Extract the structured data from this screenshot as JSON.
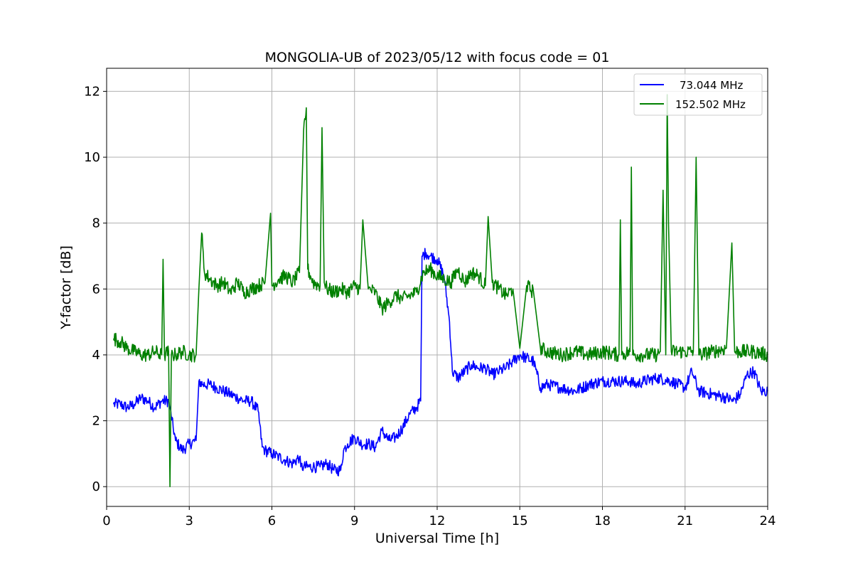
{
  "chart_data": {
    "type": "line",
    "title": "MONGOLIA-UB of 2023/05/12 with focus code = 01",
    "xlabel": "Universal Time [h]",
    "ylabel": "Y-factor [dB]",
    "xlim": [
      0,
      24
    ],
    "ylim": [
      -0.6,
      12.7
    ],
    "xticks": [
      0,
      3,
      6,
      9,
      12,
      15,
      18,
      21,
      24
    ],
    "yticks": [
      0,
      2,
      4,
      6,
      8,
      10,
      12
    ],
    "xtick_labels": [
      "0",
      "3",
      "6",
      "9",
      "12",
      "15",
      "18",
      "21",
      "24"
    ],
    "ytick_labels": [
      "0",
      "2",
      "4",
      "6",
      "8",
      "10",
      "12"
    ],
    "grid": true,
    "legend_position": "top-right",
    "series": [
      {
        "name": "73.044 MHz",
        "color": "#0000ff",
        "x": [
          0.25,
          0.5,
          0.75,
          1.0,
          1.25,
          1.5,
          1.75,
          2.0,
          2.25,
          2.5,
          2.75,
          3.0,
          3.25,
          3.35,
          3.5,
          3.75,
          4.0,
          4.25,
          4.5,
          4.75,
          5.0,
          5.25,
          5.5,
          5.65,
          5.75,
          6.0,
          6.25,
          6.5,
          6.75,
          7.0,
          7.05,
          7.15,
          7.5,
          7.75,
          8.0,
          8.25,
          8.5,
          8.6,
          8.75,
          9.0,
          9.25,
          9.5,
          9.75,
          10.0,
          10.25,
          10.5,
          10.75,
          11.0,
          11.25,
          11.4,
          11.45,
          11.6,
          11.75,
          12.0,
          12.25,
          12.45,
          12.55,
          12.75,
          13.0,
          13.25,
          13.5,
          13.75,
          14.0,
          14.25,
          14.5,
          14.75,
          15.0,
          15.25,
          15.5,
          15.75,
          16.0,
          16.5,
          17.0,
          17.5,
          18.0,
          18.5,
          19.0,
          19.2,
          19.5,
          20.0,
          20.5,
          21.0,
          21.25,
          21.5,
          22.0,
          22.5,
          22.75,
          23.0,
          23.25,
          23.5,
          23.75,
          24.0
        ],
        "y": [
          2.5,
          2.5,
          2.4,
          2.5,
          2.7,
          2.6,
          2.4,
          2.6,
          2.6,
          1.4,
          1.1,
          1.3,
          1.4,
          3.2,
          3.1,
          3.1,
          3.0,
          2.9,
          2.8,
          2.7,
          2.6,
          2.6,
          2.3,
          1.2,
          1.1,
          1.0,
          0.9,
          0.8,
          0.7,
          0.9,
          0.6,
          0.6,
          0.6,
          0.6,
          0.7,
          0.5,
          0.5,
          1.1,
          1.3,
          1.5,
          1.3,
          1.3,
          1.2,
          1.7,
          1.4,
          1.5,
          1.8,
          2.2,
          2.4,
          2.6,
          7.0,
          7.1,
          7.0,
          6.9,
          6.4,
          5.0,
          3.5,
          3.3,
          3.5,
          3.7,
          3.6,
          3.6,
          3.4,
          3.5,
          3.6,
          3.8,
          4.0,
          3.9,
          3.8,
          3.0,
          3.1,
          3.0,
          2.9,
          3.1,
          3.2,
          3.2,
          3.2,
          3.1,
          3.2,
          3.3,
          3.2,
          3.0,
          3.5,
          2.9,
          2.8,
          2.7,
          2.6,
          2.8,
          3.4,
          3.5,
          2.9,
          2.9
        ]
      },
      {
        "name": "152.502 MHz",
        "color": "#008000",
        "x": [
          0.25,
          0.5,
          0.75,
          1.0,
          1.25,
          1.5,
          1.75,
          2.0,
          2.05,
          2.1,
          2.25,
          2.3,
          2.35,
          2.5,
          2.75,
          3.0,
          3.25,
          3.35,
          3.45,
          3.55,
          3.75,
          4.0,
          4.25,
          4.5,
          4.75,
          5.0,
          5.25,
          5.5,
          5.75,
          5.95,
          6.0,
          6.25,
          6.5,
          6.75,
          7.0,
          7.15,
          7.25,
          7.3,
          7.4,
          7.5,
          7.75,
          7.82,
          7.9,
          8.0,
          8.25,
          8.5,
          8.75,
          9.0,
          9.2,
          9.3,
          9.5,
          9.75,
          10.0,
          10.25,
          10.5,
          10.75,
          11.0,
          11.25,
          11.5,
          11.75,
          12.0,
          12.25,
          12.5,
          12.75,
          13.0,
          13.25,
          13.5,
          13.75,
          13.85,
          14.0,
          14.25,
          14.5,
          14.75,
          15.0,
          15.25,
          15.5,
          15.75,
          16.0,
          16.5,
          17.0,
          17.5,
          18.0,
          18.6,
          18.65,
          18.7,
          19.0,
          19.05,
          19.1,
          19.5,
          20.0,
          20.1,
          20.2,
          20.3,
          20.35,
          20.4,
          20.5,
          21.0,
          21.3,
          21.4,
          21.5,
          22.0,
          22.5,
          22.7,
          22.8,
          23.0,
          23.5,
          24.0
        ],
        "y": [
          4.5,
          4.4,
          4.2,
          4.1,
          4.0,
          4.0,
          4.1,
          4.0,
          6.9,
          4.0,
          4.1,
          0.0,
          4.0,
          4.0,
          4.1,
          4.0,
          4.0,
          6.0,
          7.7,
          6.5,
          6.3,
          6.1,
          6.2,
          5.9,
          6.2,
          5.9,
          6.0,
          6.1,
          6.2,
          8.3,
          6.1,
          6.3,
          6.4,
          6.2,
          6.5,
          10.8,
          11.5,
          6.6,
          6.4,
          6.2,
          6.1,
          10.9,
          6.2,
          6.0,
          5.9,
          6.0,
          5.9,
          6.1,
          6.0,
          8.1,
          6.0,
          5.9,
          5.4,
          5.6,
          5.8,
          5.7,
          5.8,
          5.9,
          6.5,
          6.6,
          6.4,
          6.3,
          6.2,
          6.6,
          6.2,
          6.5,
          6.4,
          6.1,
          8.2,
          6.2,
          6.0,
          5.8,
          6.0,
          4.2,
          6.1,
          5.9,
          4.2,
          4.1,
          4.0,
          4.1,
          4.0,
          4.1,
          4.0,
          8.1,
          4.0,
          4.1,
          9.7,
          4.0,
          4.0,
          4.0,
          4.1,
          9.0,
          4.0,
          11.9,
          8.0,
          4.1,
          4.1,
          4.1,
          10.0,
          4.0,
          4.1,
          4.2,
          7.4,
          4.1,
          4.1,
          4.1,
          4.0
        ]
      }
    ]
  }
}
